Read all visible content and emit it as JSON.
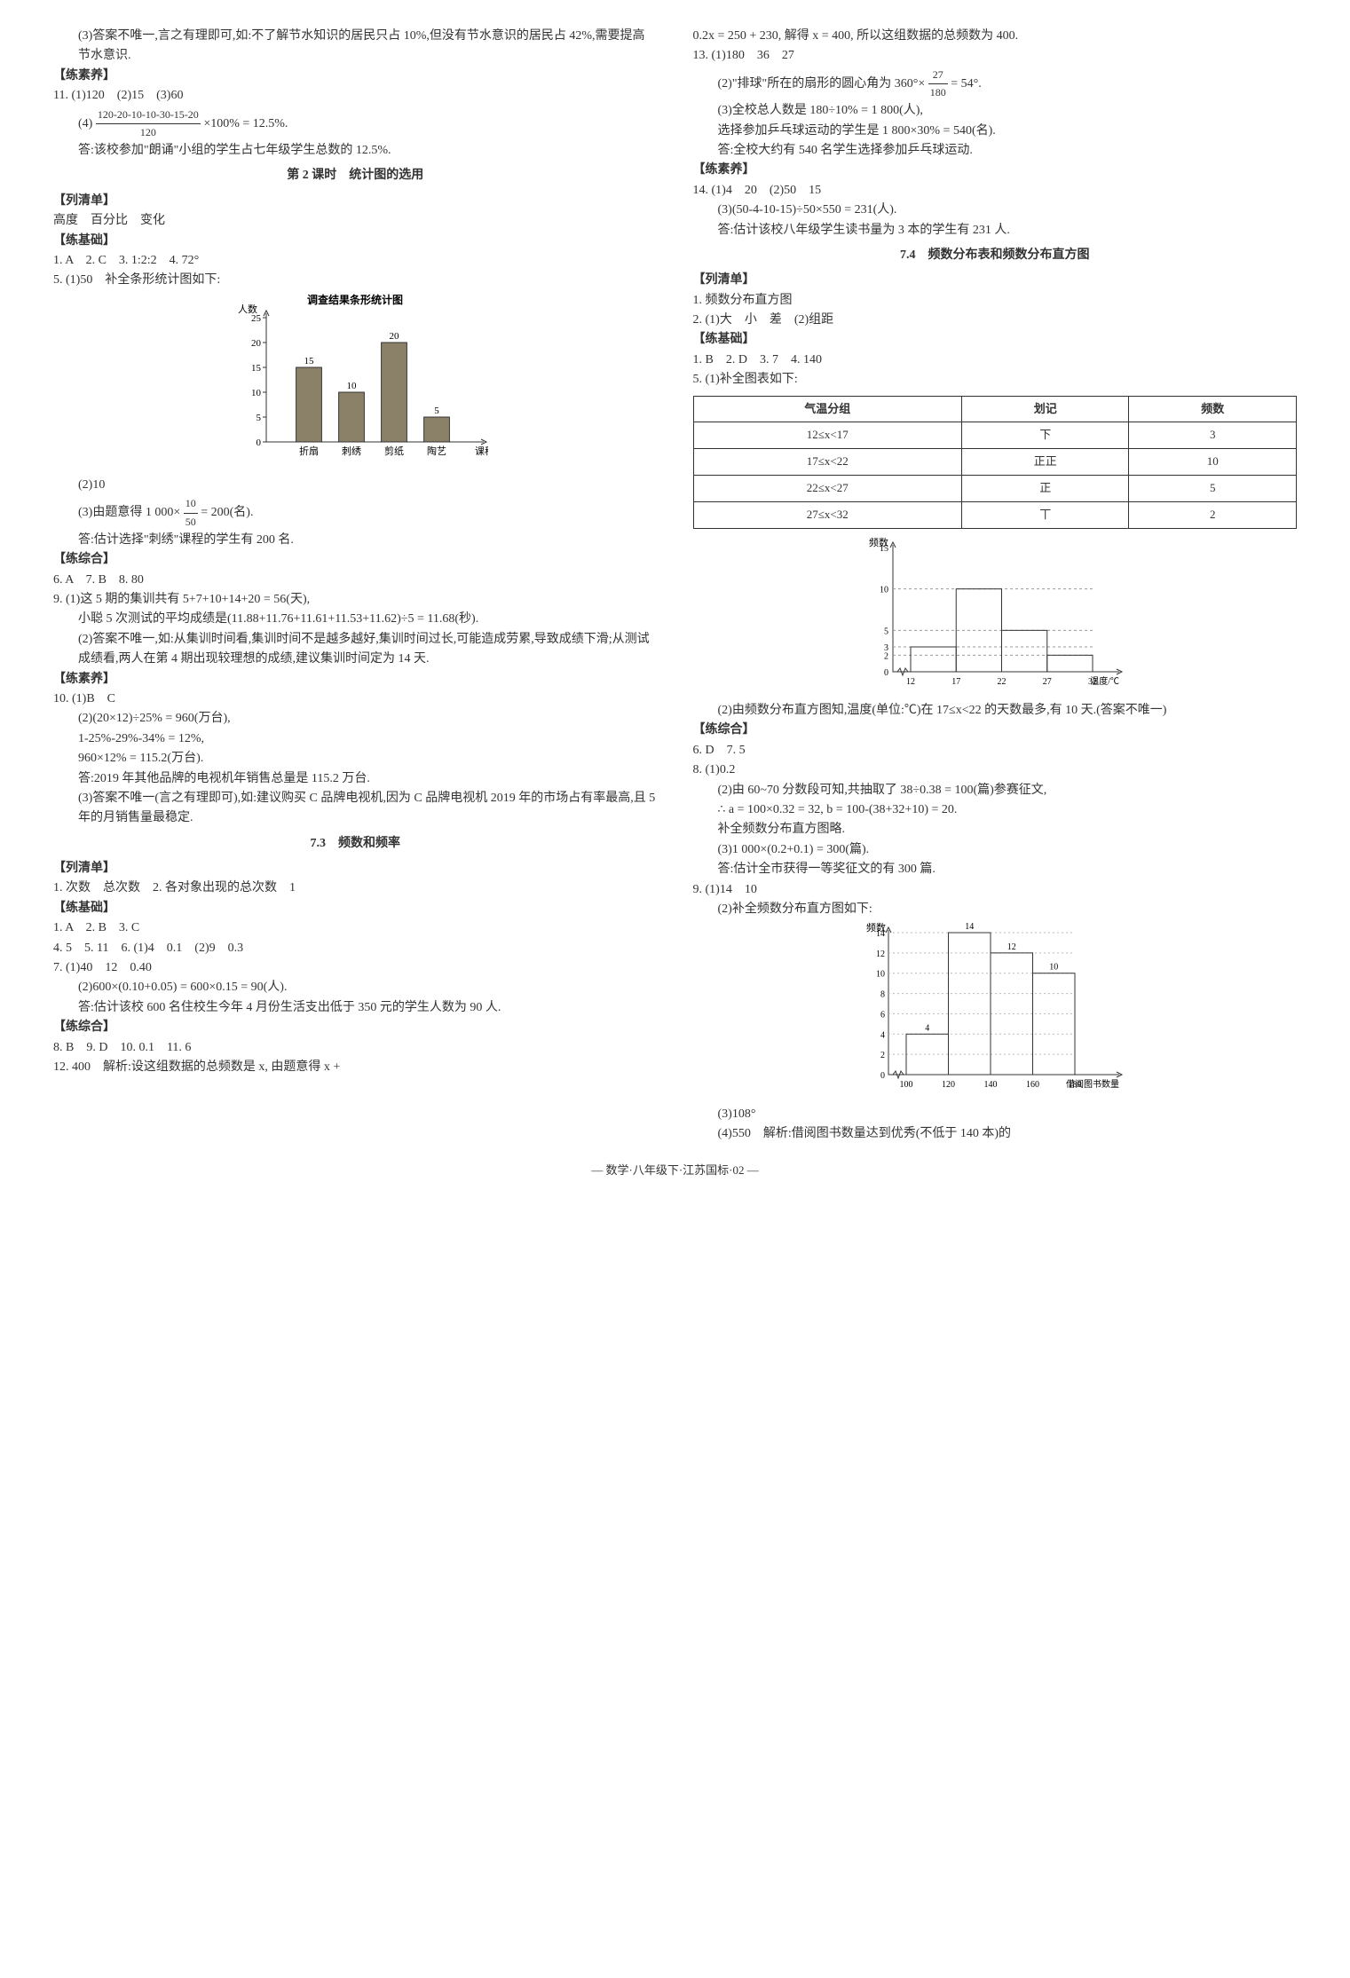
{
  "left": {
    "p3": "(3)答案不唯一,言之有理即可,如:不了解节水知识的居民只占 10%,但没有节水意识的居民占 42%,需要提高节水意识.",
    "liansu": "【练素养】",
    "p11a": "11. (1)120　(2)15　(3)60",
    "p11b_prefix": "(4)",
    "p11b_num": "120-20-10-10-30-15-20",
    "p11b_den": "120",
    "p11b_suffix": "×100% = 12.5%.",
    "p11c": "答:该校参加\"朗诵\"小组的学生占七年级学生总数的 12.5%.",
    "lesson2": "第 2 课时　统计图的选用",
    "lieqing": "【列清单】",
    "lieqing_text": "高度　百分比　变化",
    "lianji": "【练基础】",
    "q1_5": "1. A　2. C　3. 1:2:2　4. 72°",
    "q5a": "5. (1)50　补全条形统计图如下:",
    "chart1": {
      "title": "调查结果条形统计图",
      "ylabel": "人数",
      "xlabel": "课程",
      "categories": [
        "折扇",
        "刺绣",
        "剪纸",
        "陶艺"
      ],
      "values": [
        15,
        10,
        20,
        5
      ],
      "ylim": [
        0,
        25
      ],
      "ytick_step": 5,
      "bar_color": "#8a8168",
      "label_fontsize": 11,
      "title_fontsize": 12
    },
    "q5b": "(2)10",
    "q5c_prefix": "(3)由题意得 1 000×",
    "q5c_num": "10",
    "q5c_den": "50",
    "q5c_suffix": " = 200(名).",
    "q5d": "答:估计选择\"刺绣\"课程的学生有 200 名.",
    "lianzong": "【练综合】",
    "q6_8": "6. A　7. B　8. 80",
    "q9a": "9. (1)这 5 期的集训共有 5+7+10+14+20 = 56(天),",
    "q9b": "小聪 5 次测试的平均成绩是(11.88+11.76+11.61+11.53+11.62)÷5 = 11.68(秒).",
    "q9c": "(2)答案不唯一,如:从集训时间看,集训时间不是越多越好,集训时间过长,可能造成劳累,导致成绩下滑;从测试成绩看,两人在第 4 期出现较理想的成绩,建议集训时间定为 14 天.",
    "liansu2": "【练素养】",
    "q10a": "10. (1)B　C",
    "q10b": "(2)(20×12)÷25% = 960(万台),",
    "q10c": "1-25%-29%-34% = 12%,",
    "q10d": "960×12% = 115.2(万台).",
    "q10e": "答:2019 年其他品牌的电视机年销售总量是 115.2 万台.",
    "q10f": "(3)答案不唯一(言之有理即可),如:建议购买 C 品牌电视机,因为 C 品牌电视机 2019 年的市场占有率最高,且 5 年的月销售量最稳定.",
    "sec73": "7.3　频数和频率",
    "lieqing2": "【列清单】",
    "lieqing2_text": "1. 次数　总次数　2. 各对象出现的总次数　1",
    "lianji2": "【练基础】",
    "r1_3": "1. A　2. B　3. C",
    "r4_6": "4. 5　5. 11　6. (1)4　0.1　(2)9　0.3",
    "r7a": "7. (1)40　12　0.40",
    "r7b": "(2)600×(0.10+0.05) = 600×0.15 = 90(人).",
    "r7c": "答:估计该校 600 名住校生今年 4 月份生活支出低于 350 元的学生人数为 90 人.",
    "lianzong2": "【练综合】",
    "r8_11": "8. B　9. D　10. 0.1　11. 6",
    "r12": "12. 400　解析:设这组数据的总频数是 x, 由题意得 x +"
  },
  "right": {
    "cont12": "0.2x = 250 + 230, 解得 x = 400, 所以这组数据的总频数为 400.",
    "q13a": "13. (1)180　36　27",
    "q13b_prefix": "(2)\"排球\"所在的扇形的圆心角为 360°×",
    "q13b_num": "27",
    "q13b_den": "180",
    "q13b_suffix": " = 54°.",
    "q13c": "(3)全校总人数是 180÷10% = 1 800(人),",
    "q13d": "选择参加乒乓球运动的学生是 1 800×30% = 540(名).",
    "q13e": "答:全校大约有 540 名学生选择参加乒乓球运动.",
    "liansu": "【练素养】",
    "q14a": "14. (1)4　20　(2)50　15",
    "q14b": "(3)(50-4-10-15)÷50×550 = 231(人).",
    "q14c": "答:估计该校八年级学生读书量为 3 本的学生有 231 人.",
    "sec74": "7.4　频数分布表和频数分布直方图",
    "lieqing": "【列清单】",
    "lieqing_a": "1. 频数分布直方图",
    "lieqing_b": "2. (1)大　小　差　(2)组距",
    "lianji": "【练基础】",
    "s1_4": "1. B　2. D　3. 7　4. 140",
    "s5a": "5. (1)补全图表如下:",
    "table": {
      "headers": [
        "气温分组",
        "划记",
        "频数"
      ],
      "rows": [
        [
          "12≤x<17",
          "下",
          "3"
        ],
        [
          "17≤x<22",
          "正正",
          "10"
        ],
        [
          "22≤x<27",
          "正",
          "5"
        ],
        [
          "27≤x<32",
          "丅",
          "2"
        ]
      ]
    },
    "chart2": {
      "ylabel": "频数",
      "xlabel": "温度/℃",
      "x_ticks": [
        12,
        17,
        22,
        27,
        32
      ],
      "bars": [
        3,
        10,
        5,
        2
      ],
      "y_ticks": [
        0,
        2,
        3,
        5,
        10,
        15
      ],
      "y_grid": [
        2,
        3,
        5,
        10
      ],
      "line_color": "#333333"
    },
    "s5b": "(2)由频数分布直方图知,温度(单位:℃)在 17≤x<22 的天数最多,有 10 天.(答案不唯一)",
    "lianzong": "【练综合】",
    "t6_7": "6. D　7. 5",
    "t8a": "8. (1)0.2",
    "t8b": "(2)由 60~70 分数段可知,共抽取了 38÷0.38 = 100(篇)参赛征文,",
    "t8c": "∴ a = 100×0.32 = 32, b = 100-(38+32+10) = 20.",
    "t8d": "补全频数分布直方图略.",
    "t8e": "(3)1 000×(0.2+0.1) = 300(篇).",
    "t8f": "答:估计全市获得一等奖征文的有 300 篇.",
    "t9a": "9. (1)14　10",
    "t9b": "(2)补全频数分布直方图如下:",
    "chart3": {
      "ylabel": "频数",
      "xlabel": "借阅图书数量",
      "x_ticks": [
        100,
        120,
        140,
        160,
        180
      ],
      "bars": [
        4,
        14,
        12,
        10
      ],
      "bar_labels": [
        "4",
        "14",
        "12",
        "10"
      ],
      "y_ticks": [
        0,
        2,
        4,
        6,
        8,
        10,
        12,
        14
      ],
      "line_color": "#333333"
    },
    "t9c": "(3)108°",
    "t9d": "(4)550　解析:借阅图书数量达到优秀(不低于 140 本)的"
  },
  "footer": "— 数学·八年级下·江苏国标·02 —"
}
